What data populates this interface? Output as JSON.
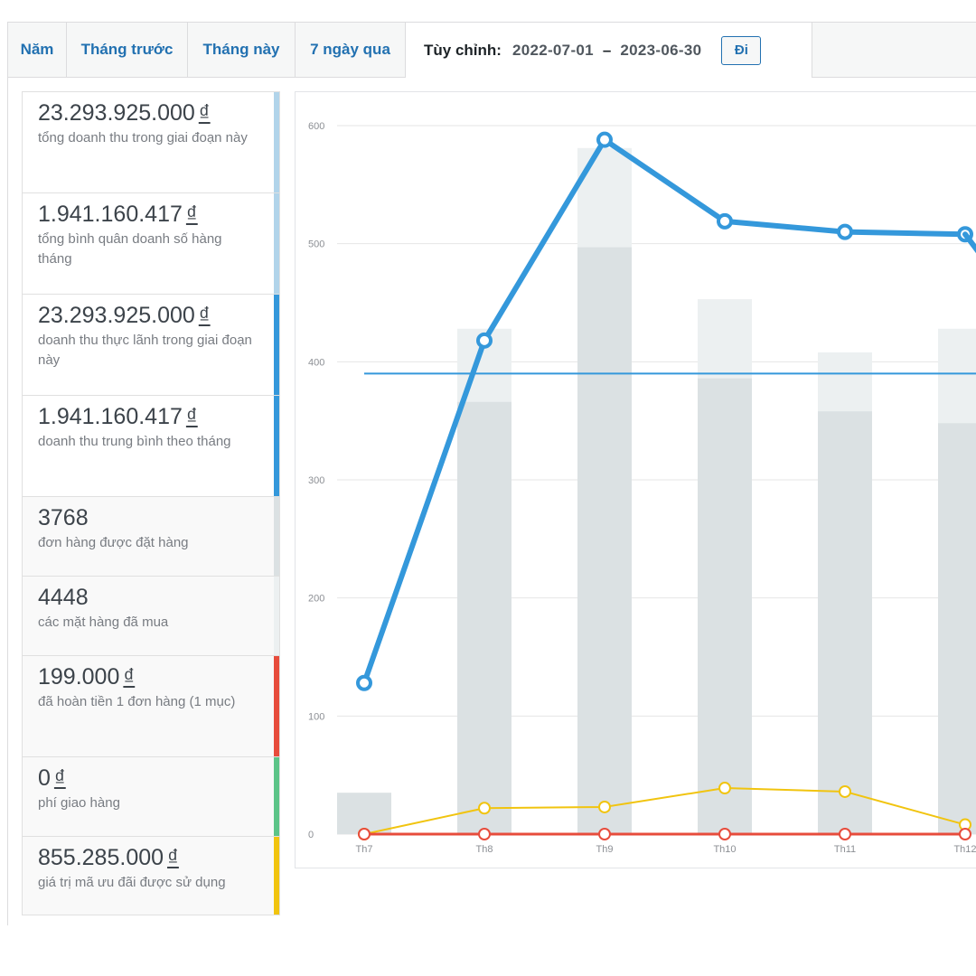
{
  "tabs": [
    {
      "label": "Năm"
    },
    {
      "label": "Tháng trước"
    },
    {
      "label": "Tháng này"
    },
    {
      "label": "7 ngày qua"
    }
  ],
  "custom_range": {
    "label": "Tùy chỉnh:",
    "from": "2022-07-01",
    "separator": "–",
    "to": "2023-06-30",
    "go_label": "Đi"
  },
  "colors": {
    "accent": "#2271b1",
    "gross_sales": "#b1d4ea",
    "net_sales": "#3498db",
    "orders": "#dbe1e3",
    "refunds": "#e74c3c",
    "shipping": "#5cc488",
    "coupons": "#f1c40f"
  },
  "stats": [
    {
      "value": "23.293.925.000",
      "currency": "₫",
      "desc": "tổng doanh thu trong giai đoạn này",
      "color": "#b1d4ea"
    },
    {
      "value": "1.941.160.417",
      "currency": "₫",
      "desc": "tổng bình quân doanh số hàng tháng",
      "color": "#b1d4ea"
    },
    {
      "value": "23.293.925.000",
      "currency": "₫",
      "desc": "doanh thu thực lãnh trong giai đoạn này",
      "color": "#3498db"
    },
    {
      "value": "1.941.160.417",
      "currency": "₫",
      "desc": "doanh thu trung bình theo tháng",
      "color": "#3498db"
    },
    {
      "value": "3768",
      "currency": "",
      "desc": "đơn hàng được đặt hàng",
      "color": "#dbe1e3"
    },
    {
      "value": "4448",
      "currency": "",
      "desc": "các mặt hàng đã mua",
      "color": "#ecf0f1"
    },
    {
      "value": "199.000",
      "currency": "₫",
      "desc": "đã hoàn tiền 1 đơn hàng (1 mục)",
      "color": "#e74c3c"
    },
    {
      "value": "0",
      "currency": "₫",
      "desc": "phí giao hàng",
      "color": "#5cc488"
    },
    {
      "value": "855.285.000",
      "currency": "₫",
      "desc": "giá trị mã ưu đãi được sử dụng",
      "color": "#f1c40f"
    }
  ],
  "chart_data": {
    "type": "bar",
    "categories": [
      "Th7",
      "Th8",
      "Th9",
      "Th10",
      "Th11",
      "Th12"
    ],
    "ylim": [
      0,
      600
    ],
    "yticks": [
      0,
      100,
      200,
      300,
      400,
      500,
      600
    ],
    "bars_total": [
      35,
      428,
      581,
      453,
      408,
      428
    ],
    "bars_inner": [
      35,
      366,
      497,
      386,
      358,
      348
    ],
    "series": [
      {
        "values": [
          128,
          418,
          588,
          519,
          510,
          508
        ],
        "color": "#3498db"
      },
      {
        "values": [
          0,
          22,
          23,
          39,
          36,
          8
        ],
        "color": "#f1c40f"
      },
      {
        "values": [
          0,
          0,
          0,
          0,
          0,
          0
        ],
        "color": "#e74c3c"
      }
    ],
    "average_line": 390,
    "grid": true
  }
}
